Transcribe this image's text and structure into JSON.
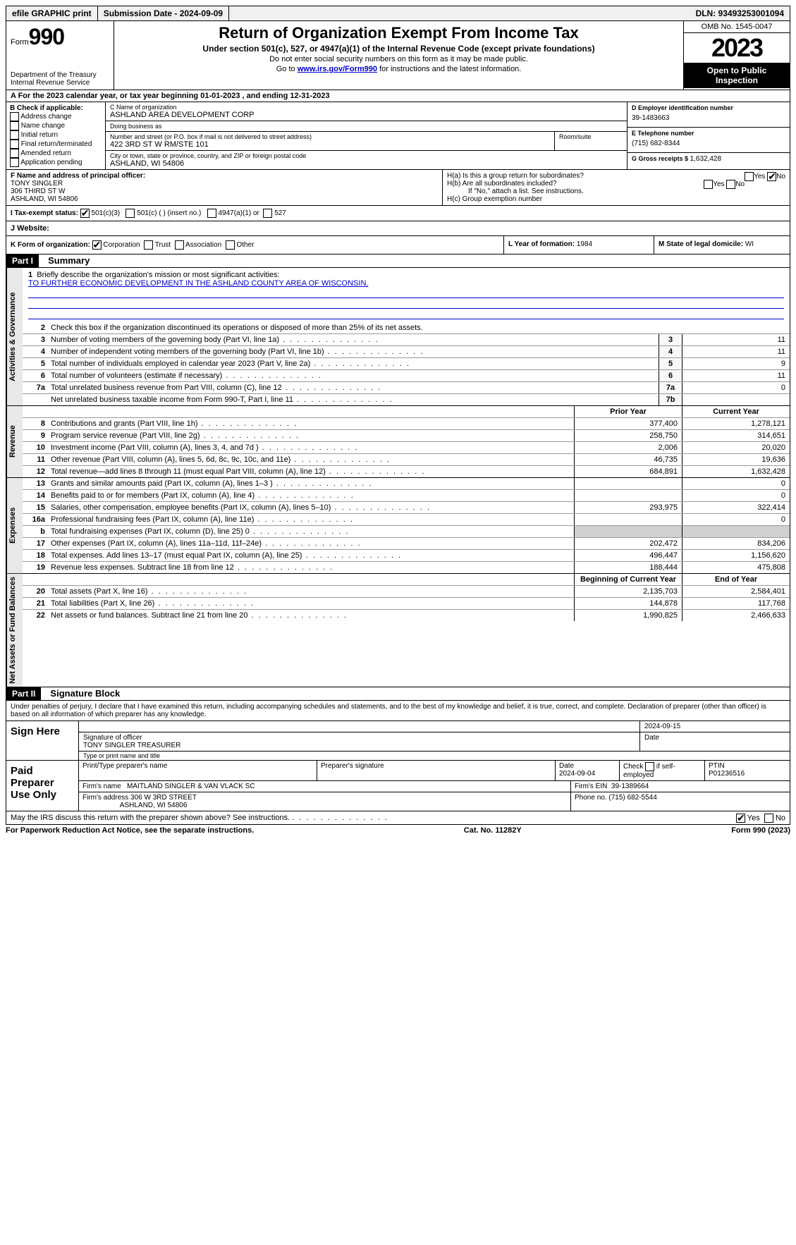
{
  "topbar": {
    "efile": "efile GRAPHIC print",
    "subdate_label": "Submission Date - 2024-09-09",
    "dln": "DLN: 93493253001094"
  },
  "header": {
    "form_label": "Form",
    "form_num": "990",
    "dept": "Department of the Treasury\nInternal Revenue Service",
    "title": "Return of Organization Exempt From Income Tax",
    "subtitle": "Under section 501(c), 527, or 4947(a)(1) of the Internal Revenue Code (except private foundations)",
    "note1": "Do not enter social security numbers on this form as it may be made public.",
    "note2_pre": "Go to ",
    "note2_link": "www.irs.gov/Form990",
    "note2_post": " for instructions and the latest information.",
    "omb": "OMB No. 1545-0047",
    "year": "2023",
    "inspect": "Open to Public Inspection"
  },
  "period": {
    "text_a": "A For the 2023 calendar year, or tax year beginning ",
    "begin": "01-01-2023",
    "mid": " , and ending ",
    "end": "12-31-2023"
  },
  "boxB": {
    "header": "B Check if applicable:",
    "opts": [
      "Address change",
      "Name change",
      "Initial return",
      "Final return/terminated",
      "Amended return",
      "Application pending"
    ]
  },
  "boxC": {
    "name_label": "C Name of organization",
    "name": "ASHLAND AREA DEVELOPMENT CORP",
    "dba_label": "Doing business as",
    "dba": "",
    "addr_label": "Number and street (or P.O. box if mail is not delivered to street address)",
    "addr": "422 3RD ST W RM/STE 101",
    "room_label": "Room/suite",
    "city_label": "City or town, state or province, country, and ZIP or foreign postal code",
    "city": "ASHLAND, WI  54806"
  },
  "boxD": {
    "label": "D Employer identification number",
    "val": "39-1483663"
  },
  "boxE": {
    "label": "E Telephone number",
    "val": "(715) 682-8344"
  },
  "boxG": {
    "label": "G Gross receipts $ ",
    "val": "1,632,428"
  },
  "boxF": {
    "label": "F  Name and address of principal officer:",
    "name": "TONY SINGLER",
    "addr1": "306 THIRD ST W",
    "addr2": "ASHLAND, WI  54806"
  },
  "boxH": {
    "ha": "H(a)  Is this a group return for subordinates?",
    "hb": "H(b)  Are all subordinates included?",
    "hb_note": "If \"No,\" attach a list. See instructions.",
    "hc": "H(c)  Group exemption number"
  },
  "boxI": {
    "label": "I  Tax-exempt status:",
    "opt1": "501(c)(3)",
    "opt2": "501(c) (  ) (insert no.)",
    "opt3": "4947(a)(1) or",
    "opt4": "527"
  },
  "boxJ": {
    "label": "J  Website:",
    "val": ""
  },
  "boxK": {
    "label": "K Form of organization:",
    "opts": [
      "Corporation",
      "Trust",
      "Association",
      "Other"
    ]
  },
  "boxL": {
    "label": "L Year of formation: ",
    "val": "1984"
  },
  "boxM": {
    "label": "M State of legal domicile: ",
    "val": "WI"
  },
  "part1": {
    "hdr": "Part I",
    "title": "Summary",
    "tab_gov": "Activities & Governance",
    "tab_rev": "Revenue",
    "tab_exp": "Expenses",
    "tab_net": "Net Assets or Fund Balances",
    "line1_label": "Briefly describe the organization's mission or most significant activities:",
    "line1_val": "TO FURTHER ECONOMIC DEVELOPMENT IN THE ASHLAND COUNTY AREA OF WISCONSIN.",
    "line2": "Check this box       if the organization discontinued its operations or disposed of more than 25% of its net assets.",
    "lines_gov": [
      {
        "n": "3",
        "t": "Number of voting members of the governing body (Part VI, line 1a)",
        "b": "3",
        "v": "11"
      },
      {
        "n": "4",
        "t": "Number of independent voting members of the governing body (Part VI, line 1b)",
        "b": "4",
        "v": "11"
      },
      {
        "n": "5",
        "t": "Total number of individuals employed in calendar year 2023 (Part V, line 2a)",
        "b": "5",
        "v": "9"
      },
      {
        "n": "6",
        "t": "Total number of volunteers (estimate if necessary)",
        "b": "6",
        "v": "11"
      },
      {
        "n": "7a",
        "t": "Total unrelated business revenue from Part VIII, column (C), line 12",
        "b": "7a",
        "v": "0"
      },
      {
        "n": "",
        "t": "Net unrelated business taxable income from Form 990-T, Part I, line 11",
        "b": "7b",
        "v": ""
      }
    ],
    "col_prior": "Prior Year",
    "col_curr": "Current Year",
    "col_begin": "Beginning of Current Year",
    "col_end": "End of Year",
    "lines_rev": [
      {
        "n": "8",
        "t": "Contributions and grants (Part VIII, line 1h)",
        "p": "377,400",
        "c": "1,278,121"
      },
      {
        "n": "9",
        "t": "Program service revenue (Part VIII, line 2g)",
        "p": "258,750",
        "c": "314,651"
      },
      {
        "n": "10",
        "t": "Investment income (Part VIII, column (A), lines 3, 4, and 7d )",
        "p": "2,006",
        "c": "20,020"
      },
      {
        "n": "11",
        "t": "Other revenue (Part VIII, column (A), lines 5, 6d, 8c, 9c, 10c, and 11e)",
        "p": "46,735",
        "c": "19,636"
      },
      {
        "n": "12",
        "t": "Total revenue—add lines 8 through 11 (must equal Part VIII, column (A), line 12)",
        "p": "684,891",
        "c": "1,632,428"
      }
    ],
    "lines_exp": [
      {
        "n": "13",
        "t": "Grants and similar amounts paid (Part IX, column (A), lines 1–3 )",
        "p": "",
        "c": "0"
      },
      {
        "n": "14",
        "t": "Benefits paid to or for members (Part IX, column (A), line 4)",
        "p": "",
        "c": "0"
      },
      {
        "n": "15",
        "t": "Salaries, other compensation, employee benefits (Part IX, column (A), lines 5–10)",
        "p": "293,975",
        "c": "322,414"
      },
      {
        "n": "16a",
        "t": "Professional fundraising fees (Part IX, column (A), line 11e)",
        "p": "",
        "c": "0"
      },
      {
        "n": "b",
        "t": "Total fundraising expenses (Part IX, column (D), line 25) 0",
        "p": "SHADE",
        "c": "SHADE"
      },
      {
        "n": "17",
        "t": "Other expenses (Part IX, column (A), lines 11a–11d, 11f–24e)",
        "p": "202,472",
        "c": "834,206"
      },
      {
        "n": "18",
        "t": "Total expenses. Add lines 13–17 (must equal Part IX, column (A), line 25)",
        "p": "496,447",
        "c": "1,156,620"
      },
      {
        "n": "19",
        "t": "Revenue less expenses. Subtract line 18 from line 12",
        "p": "188,444",
        "c": "475,808"
      }
    ],
    "lines_net": [
      {
        "n": "20",
        "t": "Total assets (Part X, line 16)",
        "p": "2,135,703",
        "c": "2,584,401"
      },
      {
        "n": "21",
        "t": "Total liabilities (Part X, line 26)",
        "p": "144,878",
        "c": "117,768"
      },
      {
        "n": "22",
        "t": "Net assets or fund balances. Subtract line 21 from line 20",
        "p": "1,990,825",
        "c": "2,466,633"
      }
    ]
  },
  "part2": {
    "hdr": "Part II",
    "title": "Signature Block",
    "decl": "Under penalties of perjury, I declare that I have examined this return, including accompanying schedules and statements, and to the best of my knowledge and belief, it is true, correct, and complete. Declaration of preparer (other than officer) is based on all information of which preparer has any knowledge.",
    "sign_here": "Sign Here",
    "sig_date": "2024-09-15",
    "sig_officer_lbl": "Signature of officer",
    "sig_name": "TONY SINGLER  TREASURER",
    "sig_type_lbl": "Type or print name and title",
    "date_lbl": "Date",
    "paid": "Paid Preparer Use Only",
    "prep_name_lbl": "Print/Type preparer's name",
    "prep_sig_lbl": "Preparer's signature",
    "prep_date": "2024-09-04",
    "prep_self": "Check         if self-employed",
    "ptin_lbl": "PTIN",
    "ptin": "P01236516",
    "firm_name_lbl": "Firm's name",
    "firm_name": "MAITLAND SINGLER & VAN VLACK SC",
    "firm_ein_lbl": "Firm's EIN",
    "firm_ein": "39-1389664",
    "firm_addr_lbl": "Firm's address",
    "firm_addr1": "306 W 3RD STREET",
    "firm_addr2": "ASHLAND, WI  54806",
    "firm_phone_lbl": "Phone no.",
    "firm_phone": "(715) 682-5544",
    "discuss": "May the IRS discuss this return with the preparer shown above? See instructions."
  },
  "footer": {
    "left": "For Paperwork Reduction Act Notice, see the separate instructions.",
    "mid": "Cat. No. 11282Y",
    "right_a": "Form ",
    "right_b": "990",
    "right_c": " (2023)"
  },
  "yes": "Yes",
  "no": "No"
}
